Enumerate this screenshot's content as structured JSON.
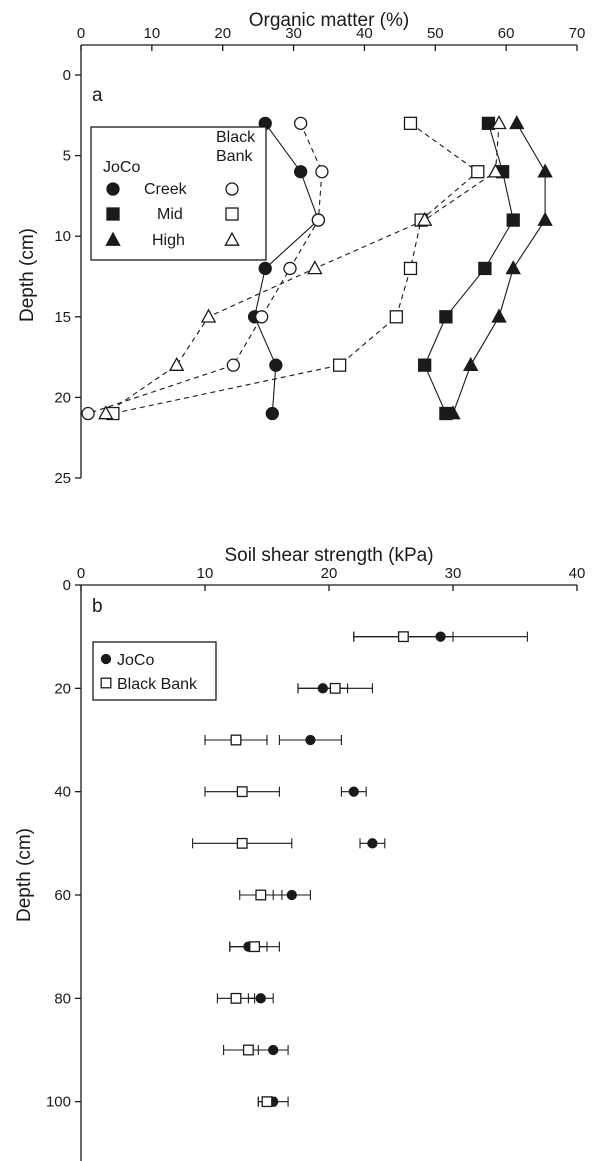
{
  "chart_data": [
    {
      "type": "scatter",
      "panel": "a",
      "title": "",
      "xlabel": "Organic matter (%)",
      "ylabel": "Depth (cm)",
      "xlim": [
        0,
        70
      ],
      "ylim": [
        25,
        0
      ],
      "x_axis_position": "top",
      "y_inverted": true,
      "xticks": [
        0,
        10,
        20,
        30,
        40,
        50,
        60,
        70
      ],
      "yticks": [
        0,
        5,
        10,
        15,
        20,
        25
      ],
      "grid": false,
      "legend_placement": "upper-left",
      "legend": {
        "header_left": "JoCo",
        "header_right_line1": "Black",
        "header_right_line2": "Bank",
        "rows": [
          "Creek",
          "Mid",
          "High"
        ]
      },
      "series": [
        {
          "site": "JoCo",
          "zone": "Creek",
          "marker": "circle",
          "filled": true,
          "line": "solid",
          "points": [
            [
              26,
              3
            ],
            [
              31,
              6
            ],
            [
              33.5,
              9
            ],
            [
              26,
              12
            ],
            [
              24.5,
              15
            ],
            [
              27.5,
              18
            ],
            [
              27,
              21
            ]
          ]
        },
        {
          "site": "JoCo",
          "zone": "Mid",
          "marker": "square",
          "filled": true,
          "line": "solid",
          "points": [
            [
              57.5,
              3
            ],
            [
              59.5,
              6
            ],
            [
              61,
              9
            ],
            [
              57,
              12
            ],
            [
              51.5,
              15
            ],
            [
              48.5,
              18
            ],
            [
              51.5,
              21
            ]
          ]
        },
        {
          "site": "JoCo",
          "zone": "High",
          "marker": "triangle",
          "filled": true,
          "line": "solid",
          "points": [
            [
              61.5,
              3
            ],
            [
              65.5,
              6
            ],
            [
              65.5,
              9
            ],
            [
              61,
              12
            ],
            [
              59,
              15
            ],
            [
              55,
              18
            ],
            [
              52.5,
              21
            ]
          ]
        },
        {
          "site": "Black Bank",
          "zone": "Creek",
          "marker": "circle",
          "filled": false,
          "line": "dashed",
          "points": [
            [
              31,
              3
            ],
            [
              34,
              6
            ],
            [
              33.5,
              9
            ],
            [
              29.5,
              12
            ],
            [
              25.5,
              15
            ],
            [
              21.5,
              18
            ],
            [
              1,
              21
            ]
          ]
        },
        {
          "site": "Black Bank",
          "zone": "Mid",
          "marker": "square",
          "filled": false,
          "line": "dashed",
          "points": [
            [
              46.5,
              3
            ],
            [
              56,
              6
            ],
            [
              48,
              9
            ],
            [
              46.5,
              12
            ],
            [
              44.5,
              15
            ],
            [
              36.5,
              18
            ],
            [
              4.5,
              21
            ]
          ]
        },
        {
          "site": "Black Bank",
          "zone": "High",
          "marker": "triangle",
          "filled": false,
          "line": "dashed",
          "points": [
            [
              59,
              3
            ],
            [
              58.5,
              6
            ],
            [
              48.5,
              9
            ],
            [
              33,
              12
            ],
            [
              18,
              15
            ],
            [
              13.5,
              18
            ],
            [
              3.5,
              21
            ]
          ]
        }
      ]
    },
    {
      "type": "scatter",
      "panel": "b",
      "title": "",
      "xlabel": "Soil shear strength (kPa)",
      "ylabel": "Depth (cm)",
      "xlim": [
        0,
        40
      ],
      "ylim": [
        108,
        0
      ],
      "x_axis_position": "top",
      "y_inverted": true,
      "xticks": [
        0,
        10,
        20,
        30,
        40
      ],
      "yticks": [
        0,
        20,
        40,
        60,
        80,
        100
      ],
      "grid": false,
      "error_bars": "horizontal",
      "legend_placement": "upper-left",
      "series": [
        {
          "name": "JoCo",
          "marker": "circle",
          "filled": true,
          "points": [
            {
              "depth": 10,
              "value": 29,
              "err": 7
            },
            {
              "depth": 20,
              "value": 19.5,
              "err": 2
            },
            {
              "depth": 30,
              "value": 18.5,
              "err": 2.5
            },
            {
              "depth": 40,
              "value": 22,
              "err": 1
            },
            {
              "depth": 50,
              "value": 23.5,
              "err": 1
            },
            {
              "depth": 60,
              "value": 17,
              "err": 1.5
            },
            {
              "depth": 70,
              "value": 13.5,
              "err": 1.5
            },
            {
              "depth": 80,
              "value": 14.5,
              "err": 1
            },
            {
              "depth": 90,
              "value": 15.5,
              "err": 1.2
            },
            {
              "depth": 100,
              "value": 15.5,
              "err": 1.2
            }
          ]
        },
        {
          "name": "Black Bank",
          "marker": "square",
          "filled": false,
          "points": [
            {
              "depth": 10,
              "value": 26,
              "err": 4
            },
            {
              "depth": 20,
              "value": 20.5,
              "err": 3
            },
            {
              "depth": 30,
              "value": 12.5,
              "err": 2.5
            },
            {
              "depth": 40,
              "value": 13,
              "err": 3
            },
            {
              "depth": 50,
              "value": 13,
              "err": 4
            },
            {
              "depth": 60,
              "value": 14.5,
              "err": 1.7
            },
            {
              "depth": 70,
              "value": 14,
              "err": 2
            },
            {
              "depth": 80,
              "value": 12.5,
              "err": 1.5
            },
            {
              "depth": 90,
              "value": 13.5,
              "err": 2
            },
            {
              "depth": 100,
              "value": 15,
              "err": 0.7
            }
          ]
        }
      ]
    }
  ]
}
